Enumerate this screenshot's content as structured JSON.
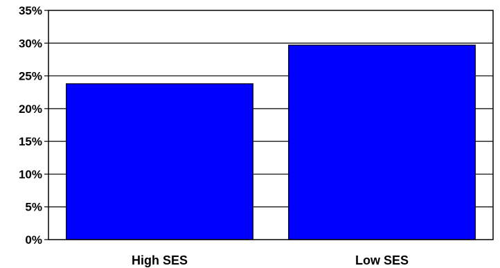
{
  "chart_data": {
    "type": "bar",
    "categories": [
      "High SES",
      "Low SES"
    ],
    "values": [
      23.8,
      29.7
    ],
    "ylim": [
      0,
      35
    ],
    "yticks": [
      0,
      5,
      10,
      15,
      20,
      25,
      30,
      35
    ],
    "ytick_labels": [
      "0%",
      "5%",
      "10%",
      "15%",
      "20%",
      "25%",
      "30%",
      "35%"
    ],
    "grid": true,
    "legend": "none",
    "bar_color": "#0000ff",
    "title": "",
    "xlabel": "",
    "ylabel": ""
  }
}
